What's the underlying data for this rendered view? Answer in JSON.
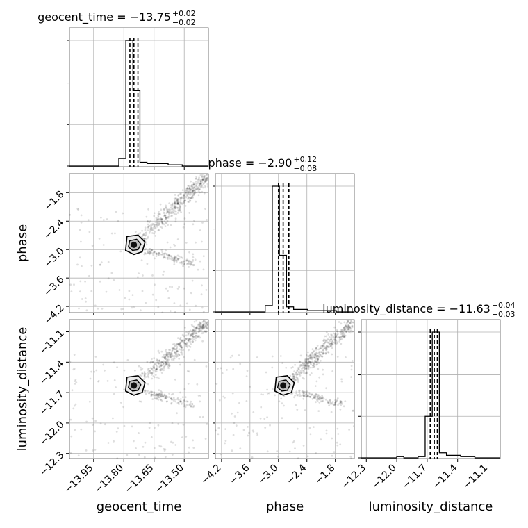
{
  "chart_data": {
    "type": "corner",
    "grid": true,
    "parameters": [
      "geocent_time",
      "phase",
      "luminosity_distance"
    ],
    "titles": [
      {
        "param": "geocent_time",
        "prefix": "geocent_time = ",
        "value": "−13.75",
        "upper": "+0.02",
        "lower": "−0.02"
      },
      {
        "param": "phase",
        "prefix": "phase = ",
        "value": "−2.90",
        "upper": "+0.12",
        "lower": "−0.08"
      },
      {
        "param": "luminosity_distance",
        "prefix": "luminosity_distance = ",
        "value": "−11.63",
        "upper": "+0.04",
        "lower": "−0.03"
      }
    ],
    "axis_labels": {
      "x": [
        "geocent_time",
        "phase",
        "luminosity_distance"
      ],
      "y": [
        "phase",
        "luminosity_distance"
      ]
    },
    "ranges": {
      "geocent_time": [
        -14.07,
        -13.38
      ],
      "phase": [
        -4.33,
        -1.4
      ],
      "luminosity_distance": [
        -12.35,
        -10.98
      ]
    },
    "ticks": {
      "geocent_time": {
        "values": [
          -13.95,
          -13.8,
          -13.65,
          -13.5
        ],
        "labels": [
          "−13.95",
          "−13.80",
          "−13.65",
          "−13.50"
        ]
      },
      "phase": {
        "values": [
          -4.2,
          -3.6,
          -3.0,
          -2.4,
          -1.8
        ],
        "labels": [
          "−4.2",
          "−3.6",
          "−3.0",
          "−2.4",
          "−1.8"
        ]
      },
      "luminosity_distance": {
        "values": [
          -12.3,
          -12.0,
          -11.7,
          -11.4,
          -11.1
        ],
        "labels": [
          "−12.3",
          "−12.0",
          "−11.7",
          "−11.4",
          "−11.1"
        ]
      }
    },
    "histograms": [
      {
        "param": "geocent_time",
        "quantiles": [
          -13.77,
          -13.75,
          -13.73
        ],
        "edges": [
          -14.07,
          -14.035,
          -14.0,
          -13.965,
          -13.93,
          -13.895,
          -13.86,
          -13.825,
          -13.79,
          -13.755,
          -13.72,
          -13.685,
          -13.65,
          -13.615,
          -13.58,
          -13.545,
          -13.51,
          -13.475,
          -13.44,
          -13.405,
          -13.38
        ],
        "counts": [
          0,
          0,
          0,
          0,
          0,
          0,
          0,
          6,
          100,
          60,
          3,
          2,
          2,
          2,
          1,
          1,
          0,
          0,
          0,
          0
        ]
      },
      {
        "param": "phase",
        "quantiles": [
          -3.0,
          -2.9,
          -2.78
        ],
        "edges": [
          -4.33,
          -4.18,
          -4.03,
          -3.88,
          -3.73,
          -3.58,
          -3.43,
          -3.28,
          -3.13,
          -2.98,
          -2.83,
          -2.68,
          -2.53,
          -2.38,
          -2.23,
          -2.08,
          -1.93,
          -1.78,
          -1.63,
          -1.48,
          -1.4
        ],
        "counts": [
          0,
          0,
          0,
          0,
          0,
          0,
          0,
          5,
          100,
          45,
          4,
          2,
          2,
          1,
          1,
          1,
          1,
          0,
          0,
          0
        ]
      },
      {
        "param": "luminosity_distance",
        "quantiles": [
          -11.67,
          -11.63,
          -11.6
        ],
        "edges": [
          -12.35,
          -12.28,
          -12.21,
          -12.14,
          -12.07,
          -12.0,
          -11.93,
          -11.86,
          -11.79,
          -11.72,
          -11.65,
          -11.58,
          -11.51,
          -11.44,
          -11.37,
          -11.3,
          -11.23,
          -11.16,
          -11.09,
          -11.02,
          -10.98
        ],
        "counts": [
          0,
          0,
          0,
          0,
          0,
          1,
          0,
          0,
          1,
          33,
          100,
          4,
          2,
          2,
          1,
          1,
          0,
          0,
          0,
          0
        ]
      }
    ],
    "scatter_panels": [
      {
        "x": "geocent_time",
        "y": "phase",
        "peak": [
          -13.75,
          -2.9
        ]
      },
      {
        "x": "geocent_time",
        "y": "luminosity_distance",
        "peak": [
          -13.75,
          -11.63
        ]
      },
      {
        "x": "phase",
        "y": "luminosity_distance",
        "peak": [
          -2.9,
          -11.63
        ]
      }
    ]
  }
}
